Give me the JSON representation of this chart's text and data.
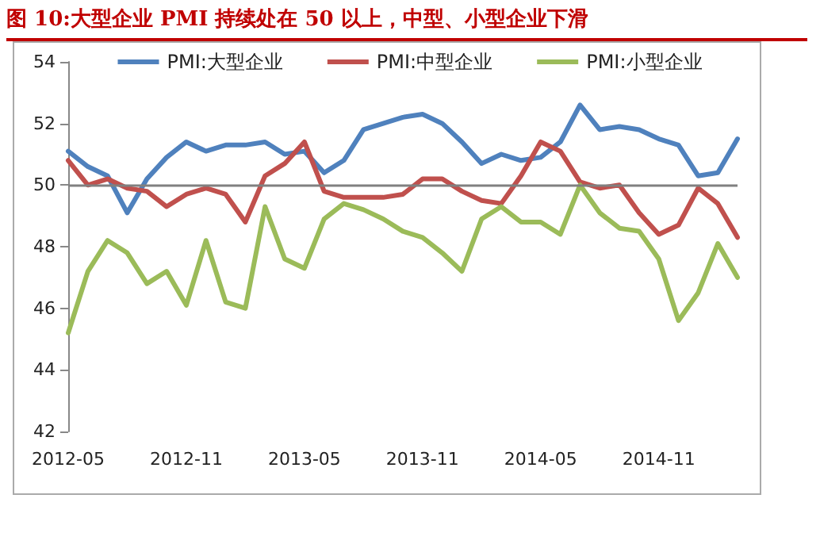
{
  "chart_data": {
    "type": "line",
    "title": "图 10:大型企业 PMI 持续处在 50 以上，中型、小型企业下滑",
    "categories": [
      "2012-05",
      null,
      null,
      null,
      null,
      null,
      "2012-11",
      null,
      null,
      null,
      null,
      null,
      "2013-05",
      null,
      null,
      null,
      null,
      null,
      "2013-11",
      null,
      null,
      null,
      null,
      null,
      "2014-05",
      null,
      null,
      null,
      null,
      null,
      "2014-11",
      null,
      null,
      null,
      null
    ],
    "series": [
      {
        "name": "PMI:大型企业",
        "color": "#4f81bd",
        "values": [
          51.1,
          50.6,
          50.3,
          49.1,
          50.2,
          50.9,
          51.4,
          51.1,
          51.3,
          51.3,
          51.4,
          51.0,
          51.1,
          50.4,
          50.8,
          51.8,
          52.0,
          52.2,
          52.3,
          52.0,
          51.4,
          50.7,
          51.0,
          50.8,
          50.9,
          51.4,
          52.6,
          51.8,
          51.9,
          51.8,
          51.5,
          51.3,
          50.3,
          50.4,
          51.5
        ]
      },
      {
        "name": "PMI:中型企业",
        "color": "#c0504d",
        "values": [
          50.8,
          50.0,
          50.2,
          49.9,
          49.8,
          49.3,
          49.7,
          49.9,
          49.7,
          48.8,
          50.3,
          50.7,
          51.4,
          49.8,
          49.6,
          49.6,
          49.6,
          49.7,
          50.2,
          50.2,
          49.8,
          49.5,
          49.4,
          50.3,
          51.4,
          51.1,
          50.1,
          49.9,
          50.0,
          49.1,
          48.4,
          48.7,
          49.9,
          49.4,
          48.3
        ]
      },
      {
        "name": "PMI:小型企业",
        "color": "#9bbb59",
        "values": [
          45.2,
          47.2,
          48.2,
          47.8,
          46.8,
          47.2,
          46.1,
          48.2,
          46.2,
          46.0,
          49.3,
          47.6,
          47.3,
          48.9,
          49.4,
          49.2,
          48.9,
          48.5,
          48.3,
          47.8,
          47.2,
          48.9,
          49.3,
          48.8,
          48.8,
          48.4,
          50.0,
          49.1,
          48.6,
          48.5,
          47.6,
          45.6,
          46.5,
          48.1,
          47.0
        ]
      }
    ],
    "ylim": [
      42,
      54
    ],
    "yticks": [
      42,
      44,
      46,
      48,
      50,
      52,
      54
    ],
    "ref_lines": [
      {
        "axis": "y",
        "value": 50,
        "color": "#808080"
      }
    ],
    "grid": false,
    "legend": "top",
    "marker": "none",
    "line_style": "solid"
  }
}
